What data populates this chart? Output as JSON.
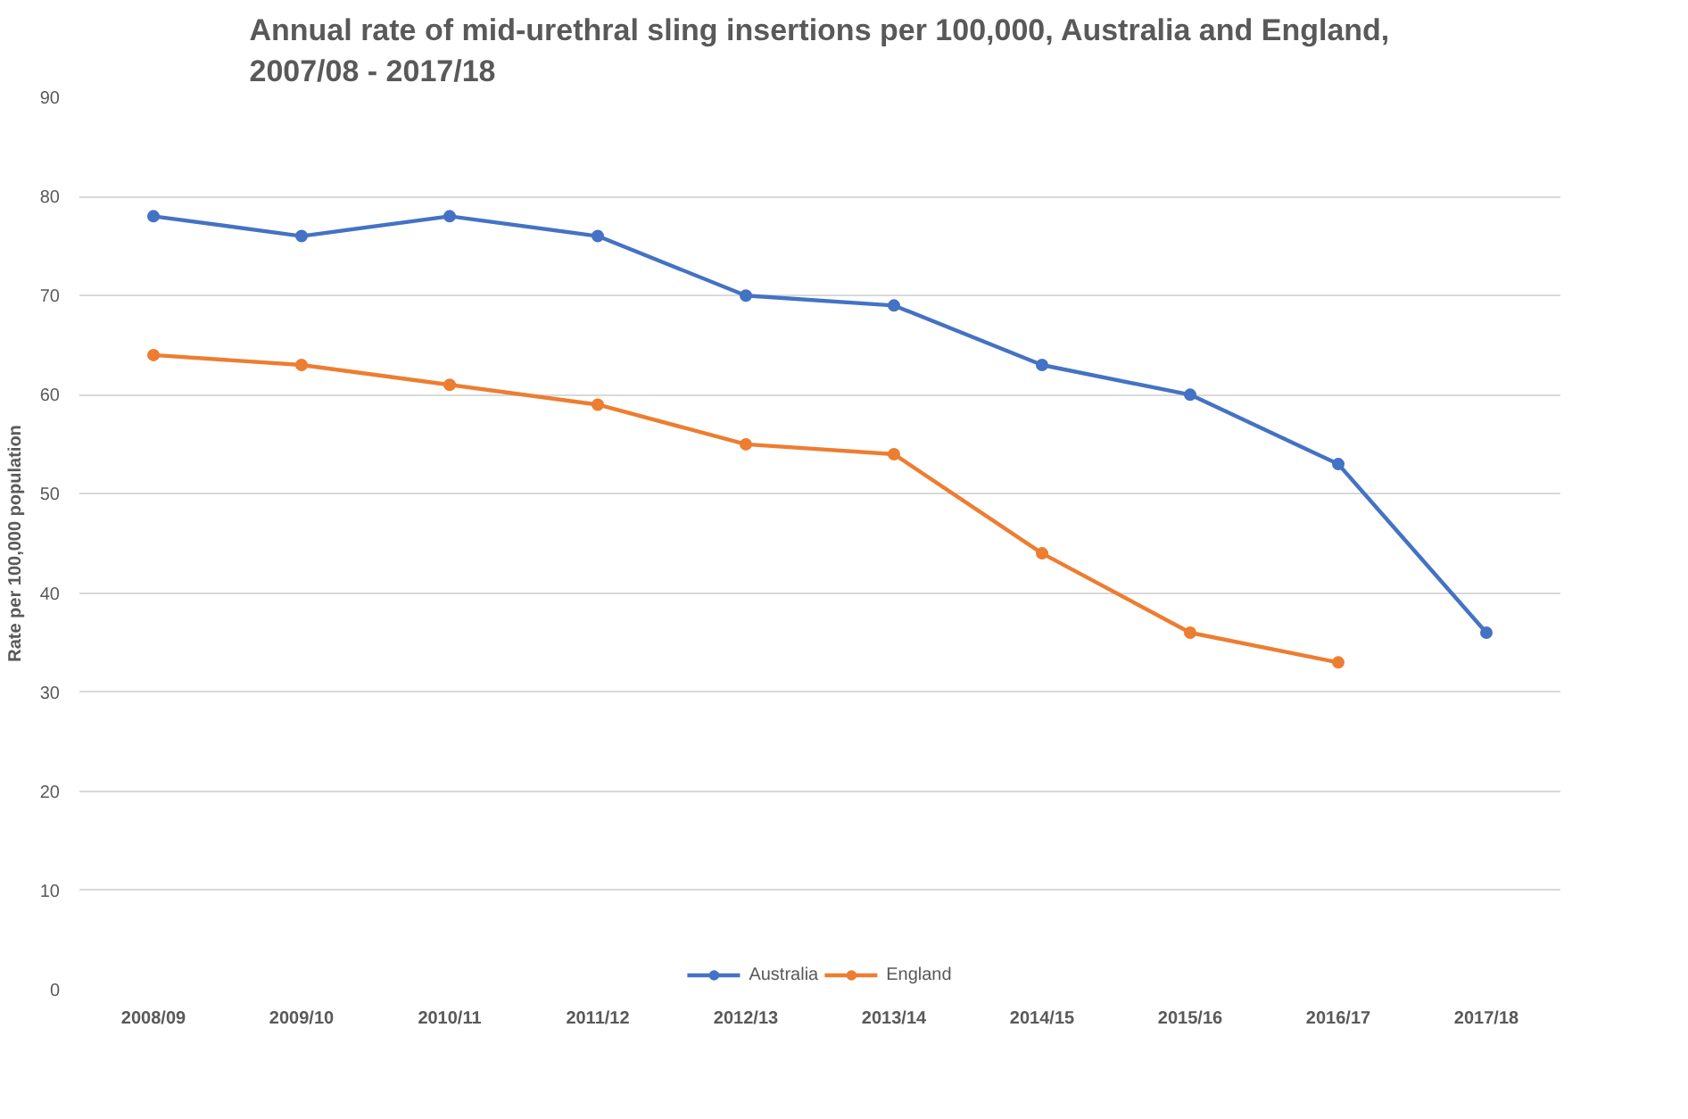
{
  "chart_data": {
    "type": "line",
    "title": "Annual rate of mid-urethral sling insertions per 100,000, Australia and England,\n2007/08 - 2017/18",
    "ylabel": "Rate per 100,000 population",
    "categories": [
      "2008/09",
      "2009/10",
      "2010/11",
      "2011/12",
      "2012/13",
      "2013/14",
      "2014/15",
      "2015/16",
      "2016/17",
      "2017/18"
    ],
    "series": [
      {
        "name": "Australia",
        "color": "#4472c4",
        "values": [
          78,
          76,
          78,
          76,
          70,
          69,
          63,
          60,
          53,
          36
        ]
      },
      {
        "name": "England",
        "color": "#ed7d31",
        "values": [
          64,
          63,
          61,
          59,
          55,
          54,
          44,
          36,
          33,
          null
        ]
      }
    ],
    "ylim": [
      0,
      90
    ],
    "yticks": [
      0,
      10,
      20,
      30,
      40,
      50,
      60,
      70,
      80,
      90
    ],
    "grid": "y",
    "legend": "bottom",
    "marker": "circle",
    "line_style": "solid"
  }
}
